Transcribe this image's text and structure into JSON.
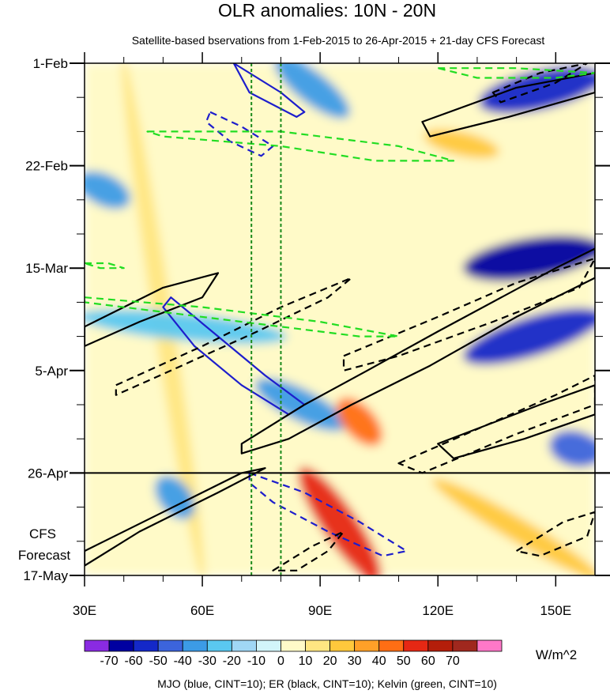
{
  "chart_data": {
    "type": "heatmap",
    "title": "OLR anomalies: 10N - 20N",
    "subtitle": "Satellite-based bservations from 1-Feb-2015 to 26-Apr-2015 + 21-day CFS Forecast",
    "x_axis": {
      "range": [
        30,
        160
      ],
      "ticks": [
        30,
        60,
        90,
        120,
        150
      ],
      "tick_labels": [
        "30E",
        "60E",
        "90E",
        "120E",
        "150E"
      ]
    },
    "y_axis": {
      "range_days": [
        0,
        105
      ],
      "ticks_days": [
        0,
        21,
        42,
        63,
        84,
        105
      ],
      "tick_labels": [
        "1-Feb",
        "22-Feb",
        "15-Mar",
        "5-Apr",
        "26-Apr",
        "17-May"
      ],
      "direction": "time increases downward"
    },
    "observation_end_day": 84,
    "forecast_label": [
      "CFS",
      "Forecast"
    ],
    "reference_lines_lon": [
      72.5,
      80
    ],
    "colorbar": {
      "levels": [
        -70,
        -60,
        -50,
        -40,
        -30,
        -20,
        -10,
        0,
        10,
        20,
        30,
        40,
        50,
        60,
        70
      ],
      "labels": [
        "-70",
        "-60",
        "-50",
        "-40",
        "-30",
        "-20",
        "-10",
        "0",
        "10",
        "20",
        "30",
        "40",
        "50",
        "60",
        "70"
      ],
      "colors": [
        "#8a2be2",
        "#0000a0",
        "#1428c8",
        "#3c64dc",
        "#3c9be6",
        "#5ac8f0",
        "#a0d7f5",
        "#d2f5fa",
        "#fffac8",
        "#ffe682",
        "#ffc83c",
        "#ffa028",
        "#ff6e14",
        "#e62814",
        "#b41e0a",
        "#a0281e",
        "#ff78c8"
      ],
      "units": "W/m^2"
    },
    "anomaly_features": [
      {
        "lon_start": 40,
        "day_start": 0,
        "lon_end": 60,
        "day_end": 105,
        "value": 10
      },
      {
        "lon_start": 80,
        "day_start": 0,
        "lon_end": 96,
        "day_end": 10,
        "value": -40
      },
      {
        "lon_start": 132,
        "day_start": 8,
        "lon_end": 160,
        "day_end": 3,
        "value": -60
      },
      {
        "lon_start": 128,
        "day_start": 42,
        "lon_end": 160,
        "day_end": 38,
        "value": -70
      },
      {
        "lon_start": 128,
        "day_start": 60,
        "lon_end": 160,
        "day_end": 52,
        "value": -60
      },
      {
        "lon_start": 30,
        "day_start": 52,
        "lon_end": 80,
        "day_end": 56,
        "value": -30
      },
      {
        "lon_start": 75,
        "day_start": 66,
        "lon_end": 95,
        "day_end": 74,
        "value": -40
      },
      {
        "lon_start": 86,
        "day_start": 84,
        "lon_end": 104,
        "day_end": 105,
        "value": 50
      },
      {
        "lon_start": 96,
        "day_start": 70,
        "lon_end": 104,
        "day_end": 77,
        "value": 40
      },
      {
        "lon_start": 30,
        "day_start": 24,
        "lon_end": 40,
        "day_end": 28,
        "value": -40
      },
      {
        "lon_start": 50,
        "day_start": 86,
        "lon_end": 56,
        "day_end": 92,
        "value": -40
      },
      {
        "lon_start": 150,
        "day_start": 78,
        "lon_end": 160,
        "day_end": 80,
        "value": -50
      },
      {
        "lon_start": 118,
        "day_start": 15,
        "lon_end": 134,
        "day_end": 18,
        "value": 20
      },
      {
        "lon_start": 120,
        "day_start": 86,
        "lon_end": 160,
        "day_end": 105,
        "value": 20
      }
    ],
    "contour_groups": [
      {
        "name": "MJO",
        "color": "#1e1ecc",
        "cint": 10,
        "contours": [
          {
            "sign": "negative",
            "points": [
              [
                68,
                0
              ],
              [
                80,
                6
              ],
              [
                86,
                10
              ],
              [
                84,
                11
              ],
              [
                72,
                6
              ],
              [
                68,
                0
              ]
            ]
          },
          {
            "sign": "negative",
            "points": [
              [
                52,
                48
              ],
              [
                64,
                56
              ],
              [
                76,
                64
              ],
              [
                86,
                70
              ],
              [
                82,
                72
              ],
              [
                70,
                66
              ],
              [
                58,
                58
              ],
              [
                50,
                50
              ],
              [
                52,
                48
              ]
            ]
          },
          {
            "sign": "positive",
            "points": [
              [
                62,
                10
              ],
              [
                70,
                13
              ],
              [
                78,
                17
              ],
              [
                75,
                19
              ],
              [
                67,
                16
              ],
              [
                61,
                12
              ],
              [
                62,
                10
              ]
            ]
          },
          {
            "sign": "positive",
            "points": [
              [
                72,
                84
              ],
              [
                86,
                88
              ],
              [
                100,
                94
              ],
              [
                112,
                100
              ],
              [
                106,
                101
              ],
              [
                92,
                96
              ],
              [
                78,
                90
              ],
              [
                72,
                86
              ],
              [
                72,
                84
              ]
            ]
          }
        ]
      },
      {
        "name": "ER",
        "color": "#000000",
        "cint": 10,
        "contours": [
          {
            "sign": "negative",
            "points": [
              [
                30,
                54
              ],
              [
                50,
                46
              ],
              [
                64,
                43
              ],
              [
                60,
                48
              ],
              [
                44,
                53
              ],
              [
                30,
                58
              ],
              [
                30,
                54
              ]
            ]
          },
          {
            "sign": "negative",
            "points": [
              [
                70,
                78
              ],
              [
                86,
                70
              ],
              [
                102,
                63
              ],
              [
                120,
                55
              ],
              [
                150,
                42
              ],
              [
                160,
                38
              ],
              [
                160,
                44
              ],
              [
                140,
                52
              ],
              [
                118,
                62
              ],
              [
                98,
                70
              ],
              [
                82,
                77
              ],
              [
                70,
                80
              ],
              [
                70,
                78
              ]
            ]
          },
          {
            "sign": "negative",
            "points": [
              [
                30,
                100
              ],
              [
                50,
                92
              ],
              [
                70,
                84
              ],
              [
                76,
                83
              ],
              [
                64,
                88
              ],
              [
                44,
                96
              ],
              [
                30,
                103
              ],
              [
                30,
                100
              ]
            ]
          },
          {
            "sign": "negative",
            "points": [
              [
                116,
                12
              ],
              [
                140,
                5
              ],
              [
                160,
                2
              ],
              [
                160,
                6
              ],
              [
                138,
                11
              ],
              [
                118,
                15
              ],
              [
                116,
                12
              ]
            ]
          },
          {
            "sign": "negative",
            "points": [
              [
                120,
                78
              ],
              [
                146,
                70
              ],
              [
                160,
                66
              ],
              [
                160,
                72
              ],
              [
                142,
                77
              ],
              [
                124,
                81
              ],
              [
                120,
                78
              ]
            ]
          },
          {
            "sign": "positive",
            "points": [
              [
                38,
                66
              ],
              [
                60,
                58
              ],
              [
                80,
                50
              ],
              [
                98,
                44
              ],
              [
                92,
                48
              ],
              [
                74,
                55
              ],
              [
                52,
                63
              ],
              [
                38,
                68
              ],
              [
                38,
                66
              ]
            ]
          },
          {
            "sign": "positive",
            "points": [
              [
                96,
                60
              ],
              [
                120,
                52
              ],
              [
                140,
                45
              ],
              [
                160,
                40
              ],
              [
                156,
                46
              ],
              [
                134,
                53
              ],
              [
                110,
                60
              ],
              [
                96,
                63
              ],
              [
                96,
                60
              ]
            ]
          },
          {
            "sign": "positive",
            "points": [
              [
                110,
                82
              ],
              [
                130,
                75
              ],
              [
                150,
                68
              ],
              [
                160,
                64
              ],
              [
                160,
                70
              ],
              [
                140,
                76
              ],
              [
                116,
                84
              ],
              [
                110,
                82
              ]
            ]
          },
          {
            "sign": "positive",
            "points": [
              [
                78,
                104
              ],
              [
                88,
                99
              ],
              [
                96,
                96
              ],
              [
                92,
                100
              ],
              [
                84,
                104
              ],
              [
                78,
                104
              ]
            ]
          },
          {
            "sign": "positive",
            "points": [
              [
                140,
                100
              ],
              [
                152,
                94
              ],
              [
                160,
                92
              ],
              [
                158,
                97
              ],
              [
                146,
                101
              ],
              [
                140,
                100
              ]
            ]
          },
          {
            "sign": "positive",
            "points": [
              [
                134,
                6
              ],
              [
                146,
                2
              ],
              [
                158,
                0
              ],
              [
                150,
                4
              ],
              [
                136,
                8
              ],
              [
                134,
                6
              ]
            ]
          }
        ]
      },
      {
        "name": "Kelvin",
        "color": "#22dd22",
        "cint": 10,
        "contours": [
          {
            "sign": "positive",
            "points": [
              [
                46,
                14
              ],
              [
                80,
                14
              ],
              [
                110,
                17
              ],
              [
                124,
                20
              ],
              [
                104,
                20
              ],
              [
                80,
                17
              ],
              [
                50,
                15
              ],
              [
                46,
                14
              ]
            ]
          },
          {
            "sign": "positive",
            "points": [
              [
                30,
                48
              ],
              [
                60,
                50
              ],
              [
                90,
                53
              ],
              [
                110,
                56
              ],
              [
                100,
                56
              ],
              [
                70,
                53
              ],
              [
                40,
                50
              ],
              [
                30,
                49
              ],
              [
                30,
                48
              ]
            ]
          },
          {
            "sign": "positive",
            "points": [
              [
                120,
                1
              ],
              [
                140,
                1
              ],
              [
                160,
                2
              ],
              [
                150,
                3
              ],
              [
                130,
                3
              ],
              [
                120,
                1
              ]
            ]
          },
          {
            "sign": "positive",
            "points": [
              [
                30,
                41
              ],
              [
                36,
                41
              ],
              [
                40,
                42
              ],
              [
                34,
                42
              ],
              [
                30,
                41
              ]
            ]
          }
        ]
      }
    ]
  },
  "footer": "MJO (blue, CINT=10); ER (black, CINT=10); Kelvin (green, CINT=10)"
}
